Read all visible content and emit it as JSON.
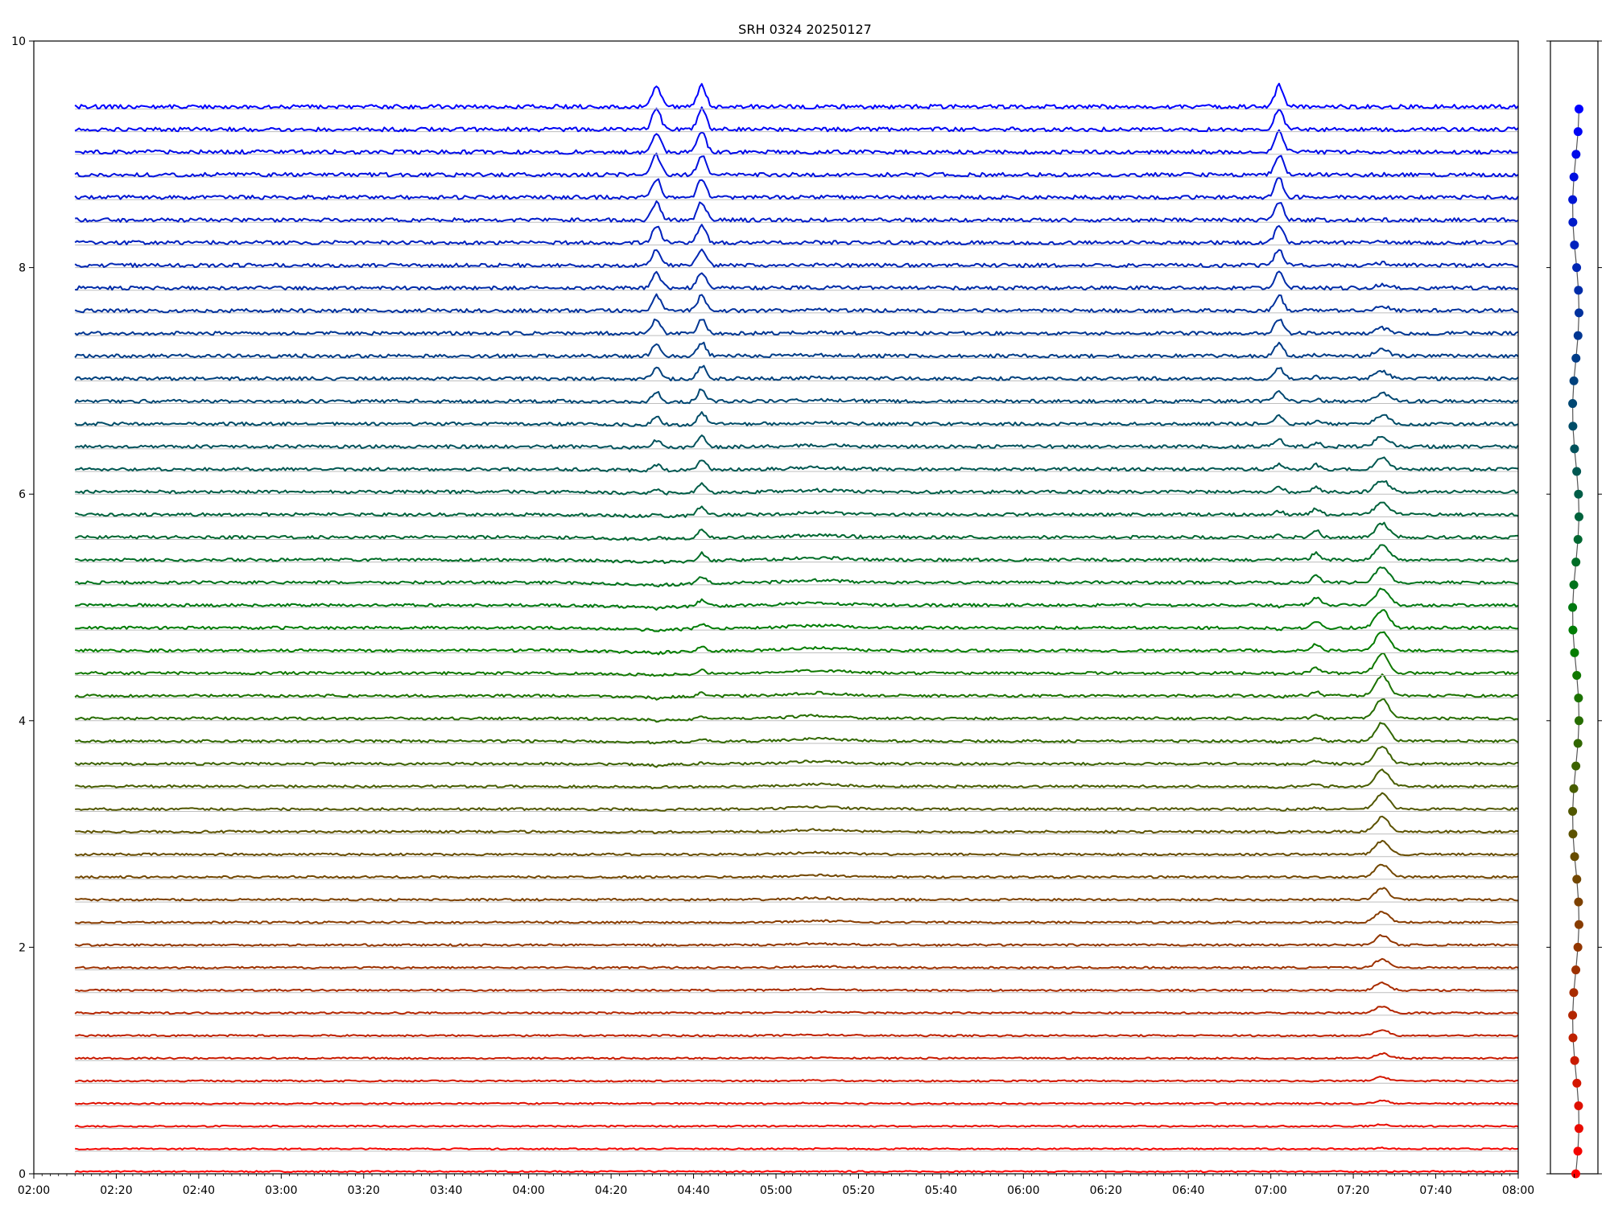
{
  "chart_data": {
    "type": "line",
    "title": "SRH 0324 20250127",
    "xlabel": "",
    "ylabel": "",
    "xlim": [
      "02:00",
      "08:00"
    ],
    "ylim": [
      0,
      10
    ],
    "xticks": [
      "02:00",
      "02:20",
      "02:40",
      "03:00",
      "03:20",
      "03:40",
      "04:00",
      "04:20",
      "04:40",
      "05:00",
      "05:20",
      "05:40",
      "06:00",
      "06:20",
      "06:40",
      "07:00",
      "07:20",
      "07:40",
      "08:00"
    ],
    "yticks": [
      "0",
      "2",
      "4",
      "6",
      "8",
      "10"
    ],
    "series_count": 48,
    "series_offset_step": 0.2,
    "data_start": "02:10",
    "data_end": "08:00",
    "color_from_bottom": "#ff0000",
    "color_middle": "#008000",
    "color_top": "#0000ff",
    "grid": false,
    "legend": "none",
    "events": [
      {
        "time": "04:31",
        "series": "upper",
        "shape": "peak"
      },
      {
        "time": "04:42",
        "series": "upper",
        "shape": "peak"
      },
      {
        "time": "07:02",
        "series": "upper",
        "shape": "peak"
      },
      {
        "time": "07:27",
        "series": "lower",
        "shape": "peak"
      },
      {
        "time": "07:11",
        "series": "middle",
        "shape": "peak"
      },
      {
        "time": "07:02",
        "series": "middle",
        "shape": "dip"
      },
      {
        "time": "04:31",
        "series": "middle",
        "shape": "dip"
      }
    ],
    "side_panel": {
      "type": "scatter",
      "points": 48,
      "description": "frequency marker per series, colored like its trace"
    }
  }
}
